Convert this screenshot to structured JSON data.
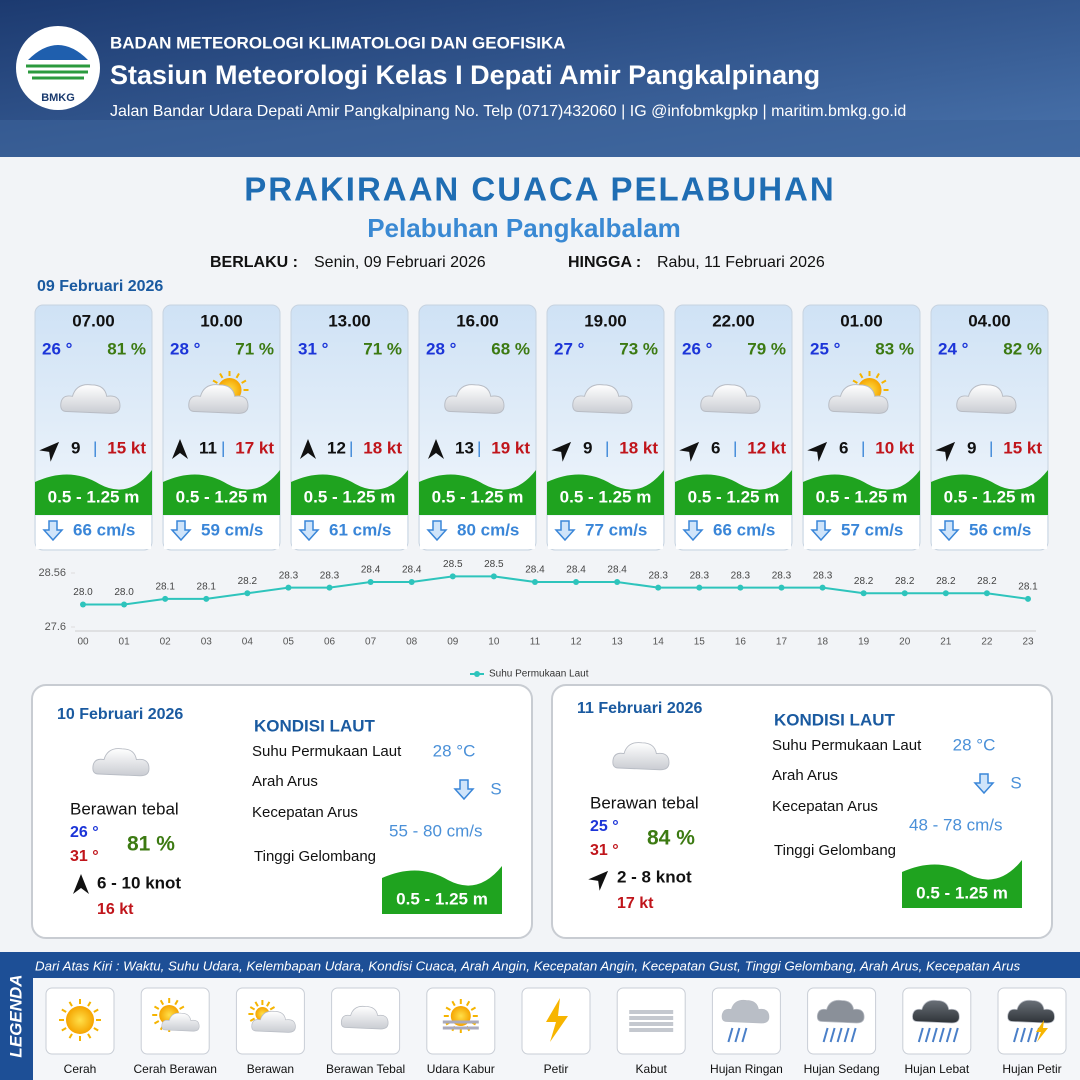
{
  "header": {
    "logo": "BMKG",
    "org": "BADAN METEOROLOGI KLIMATOLOGI DAN GEOFISIKA",
    "station": "Stasiun Meteorologi Kelas I Depati Amir Pangkalpinang",
    "address": "Jalan Bandar Udara Depati Amir Pangkalpinang No. Telp (0717)432060 | IG @infobmkgpkp | maritim.bmkg.go.id"
  },
  "title": "PRAKIRAAN CUACA PELABUHAN",
  "subtitle": "Pelabuhan Pangkalbalam",
  "validity": {
    "from_label": "BERLAKU :",
    "from": "Senin, 09 Februari 2026",
    "to_label": "HINGGA :",
    "to": "Rabu, 11 Februari 2026"
  },
  "date": "09 Februari 2026",
  "forecasts": [
    {
      "time": "07.00",
      "temp": "26 °",
      "humidity": "81 %",
      "wind": "9",
      "gust": "15 kt",
      "wave": "0.5 - 1.25 m",
      "current": "66 cm/s"
    },
    {
      "time": "10.00",
      "temp": "28 °",
      "humidity": "71 %",
      "wind": "11",
      "gust": "17 kt",
      "wave": "0.5 - 1.25 m",
      "current": "59 cm/s"
    },
    {
      "time": "13.00",
      "temp": "31 °",
      "humidity": "71 %",
      "wind": "12",
      "gust": "18 kt",
      "wave": "0.5 - 1.25 m",
      "current": "61 cm/s"
    },
    {
      "time": "16.00",
      "temp": "28 °",
      "humidity": "68 %",
      "wind": "13",
      "gust": "19 kt",
      "wave": "0.5 - 1.25 m",
      "current": "80 cm/s"
    },
    {
      "time": "19.00",
      "temp": "27 °",
      "humidity": "73 %",
      "wind": "9",
      "gust": "18 kt",
      "wave": "0.5 - 1.25 m",
      "current": "77 cm/s"
    },
    {
      "time": "22.00",
      "temp": "26 °",
      "humidity": "79 %",
      "wind": "6",
      "gust": "12 kt",
      "wave": "0.5 - 1.25 m",
      "current": "66 cm/s"
    },
    {
      "time": "01.00",
      "temp": "25 °",
      "humidity": "83 %",
      "wind": "6",
      "gust": "10 kt",
      "wave": "0.5 - 1.25 m",
      "current": "57 cm/s"
    },
    {
      "time": "04.00",
      "temp": "24 °",
      "humidity": "82 %",
      "wind": "9",
      "gust": "15 kt",
      "wave": "0.5 - 1.25 m",
      "current": "56 cm/s"
    }
  ],
  "chart_data": {
    "type": "line",
    "categories": [
      "00",
      "01",
      "02",
      "03",
      "04",
      "05",
      "06",
      "07",
      "08",
      "09",
      "10",
      "11",
      "12",
      "13",
      "14",
      "15",
      "16",
      "17",
      "18",
      "19",
      "20",
      "21",
      "22",
      "23"
    ],
    "series": [
      {
        "name": "Suhu Permukaan Laut",
        "color": "#2ec4bc",
        "values": [
          28.0,
          28.0,
          28.1,
          28.1,
          28.2,
          28.3,
          28.3,
          28.4,
          28.4,
          28.5,
          28.5,
          28.4,
          28.4,
          28.4,
          28.3,
          28.3,
          28.3,
          28.3,
          28.3,
          28.2,
          28.2,
          28.2,
          28.2,
          28.1
        ],
        "value_labels": [
          "28.0",
          "28.0",
          "28.1",
          "28.1",
          "28.2",
          "28.3",
          "28.3",
          "28.4",
          "28.4",
          "28.5",
          "28.5",
          "28.4",
          "28.4",
          "28.4",
          "28.3",
          "28.3",
          "28.3",
          "28.3",
          "28.3",
          "28.2",
          "28.2",
          "28.2",
          "28.2",
          "28.1"
        ]
      }
    ],
    "ylim": [
      27.6,
      28.56
    ],
    "yticks": [
      27.6,
      28.56
    ],
    "legend": "bottom"
  },
  "days": [
    {
      "date": "10 Februari 2026",
      "condition": "Berawan tebal",
      "temp_min": "26 °",
      "temp_max": "31 °",
      "humidity": "81 %",
      "wind": "6  - 10 knot",
      "gust": "16 kt",
      "sea_title": "KONDISI LAUT",
      "sst_label": "Suhu Permukaan Laut",
      "sst": "28 °C",
      "dir_label": "Arah Arus",
      "dir": "S",
      "speed_label": "Kecepatan Arus",
      "speed": "55  - 80 cm/s",
      "wave_label": "Tinggi Gelombang",
      "wave": "0.5 - 1.25 m"
    },
    {
      "date": "11 Februari 2026",
      "condition": "Berawan tebal",
      "temp_min": "25 °",
      "temp_max": "31 °",
      "humidity": "84 %",
      "wind": "2  - 8 knot",
      "gust": "17 kt",
      "sea_title": "KONDISI LAUT",
      "sst_label": "Suhu Permukaan Laut",
      "sst": "28 °C",
      "dir_label": "Arah Arus",
      "dir": "S",
      "speed_label": "Kecepatan Arus",
      "speed": "48  - 78 cm/s",
      "wave_label": "Tinggi Gelombang",
      "wave": "0.5 - 1.25 m"
    }
  ],
  "legend": {
    "title": "LEGENDA",
    "description": "Dari Atas Kiri : Waktu, Suhu Udara, Kelembapan Udara, Kondisi Cuaca, Arah Angin, Kecepatan Angin, Kecepatan Gust, Tinggi Gelombang, Arah Arus, Kecepatan Arus",
    "items": [
      "Cerah",
      "Cerah Berawan",
      "Berawan",
      "Berawan Tebal",
      "Udara Kabur",
      "Petir",
      "Kabut",
      "Hujan Ringan",
      "Hujan Sedang",
      "Hujan Lebat",
      "Hujan Petir"
    ]
  }
}
